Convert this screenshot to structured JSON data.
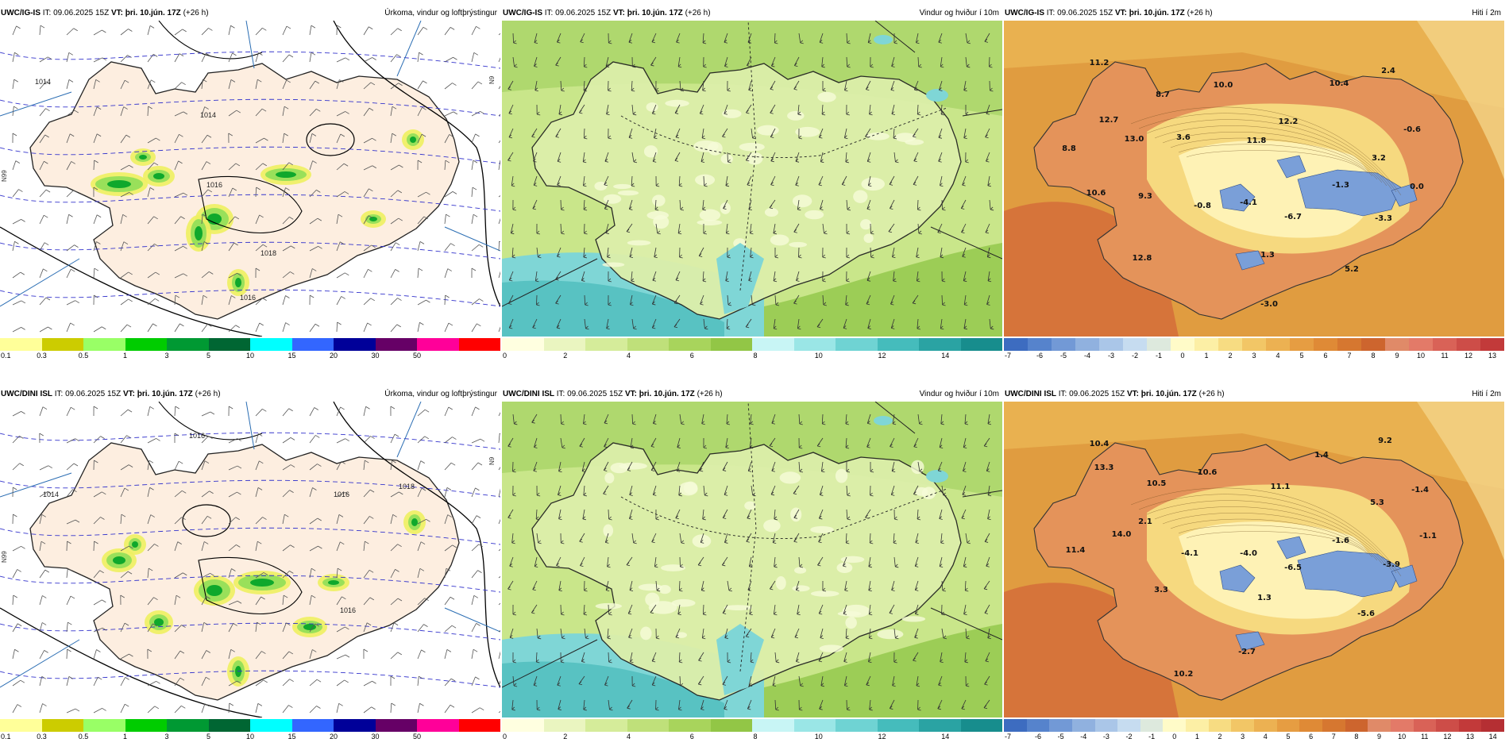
{
  "init_time": "IT: 09.06.2025 15Z",
  "valid_time": "VT: þri. 10.jún. 17Z",
  "lead": "(+26 h)",
  "panels": [
    {
      "model": "UWC/IG-IS",
      "title": "Úrkoma, vindur og loftþrýstingur",
      "kind": "precip",
      "row": 0,
      "col": 0
    },
    {
      "model": "UWC/IG-IS",
      "title": "Vindur og hviður í 10m",
      "kind": "wind",
      "row": 0,
      "col": 1
    },
    {
      "model": "UWC/IG-IS",
      "title": "Hiti í 2m",
      "kind": "temp",
      "row": 0,
      "col": 2
    },
    {
      "model": "UWC/DINI ISL",
      "title": "Úrkoma, vindur og loftþrýstingur",
      "kind": "precip",
      "row": 1,
      "col": 0
    },
    {
      "model": "UWC/DINI ISL",
      "title": "Vindur og hviður í 10m",
      "kind": "wind",
      "row": 1,
      "col": 1
    },
    {
      "model": "UWC/DINI ISL",
      "title": "Hiti í 2m",
      "kind": "temp",
      "row": 1,
      "col": 2
    }
  ],
  "colorbars": {
    "precip": {
      "colors": [
        "#ffff99",
        "#cccc00",
        "#99ff66",
        "#00cc00",
        "#009933",
        "#006633",
        "#00ffff",
        "#3366ff",
        "#000099",
        "#660066",
        "#ff0099",
        "#ff0000"
      ],
      "labels": [
        "0.1",
        "0.3",
        "0.5",
        "1",
        "3",
        "5",
        "10",
        "15",
        "20",
        "30",
        "50"
      ]
    },
    "wind": {
      "colors": [
        "#ffffe0",
        "#eaf5c0",
        "#d5ec9a",
        "#bfe07a",
        "#a8d45c",
        "#92c646",
        "#c8f5f5",
        "#9ae6e6",
        "#6fd3d3",
        "#45bcbc",
        "#2aa3a3",
        "#178d8d"
      ],
      "labels": [
        "0",
        "2",
        "4",
        "6",
        "8",
        "10",
        "12",
        "14"
      ]
    },
    "temp_top": {
      "colors": [
        "#3d6cc0",
        "#5683cc",
        "#7299d6",
        "#90b1df",
        "#aac6e8",
        "#c6dcf0",
        "#dde9dd",
        "#fffbc8",
        "#fcefa5",
        "#f7dc82",
        "#f2c666",
        "#ecb152",
        "#e69d42",
        "#df8a36",
        "#d67730",
        "#cd652e",
        "#e08a68",
        "#e37a68",
        "#d96257",
        "#cd4d48",
        "#c23a3a"
      ],
      "labels": [
        "-7",
        "-6",
        "-5",
        "-4",
        "-3",
        "-2",
        "-1",
        "0",
        "1",
        "2",
        "3",
        "4",
        "5",
        "6",
        "7",
        "8",
        "9",
        "10",
        "11",
        "12",
        "13"
      ]
    },
    "temp_bottom": {
      "colors": [
        "#3d6cc0",
        "#5683cc",
        "#7299d6",
        "#90b1df",
        "#aac6e8",
        "#c6dcf0",
        "#dde9dd",
        "#fffbc8",
        "#fcefa5",
        "#f7dc82",
        "#f2c666",
        "#ecb152",
        "#e69d42",
        "#df8a36",
        "#d67730",
        "#cd652e",
        "#e08a68",
        "#e37a68",
        "#d96257",
        "#cd4d48",
        "#c23a3a",
        "#b52f33"
      ],
      "labels": [
        "-7",
        "-6",
        "-5",
        "-4",
        "-3",
        "-2",
        "-1",
        "0",
        "1",
        "2",
        "3",
        "4",
        "5",
        "6",
        "7",
        "8",
        "9",
        "10",
        "11",
        "12",
        "13",
        "14"
      ]
    }
  },
  "temp_labels_top": [
    "11.2",
    "8.7",
    "10.0",
    "10.4",
    "2.4",
    "12.7",
    "-0.6",
    "8.8",
    "13.0",
    "3.6",
    "11.8",
    "12.2",
    "3.2",
    "-1.3",
    "0.0",
    "10.6",
    "9.3",
    "-0.8",
    "-4.1",
    "-6.7",
    "-3.3",
    "12.8",
    "1.3",
    "5.2",
    "-3.0"
  ],
  "temp_labels_bottom": [
    "10.4",
    "9.2",
    "1.4",
    "13.3",
    "10.6",
    "10.5",
    "11.1",
    "5.3",
    "-1.4",
    "2.1",
    "14.0",
    "-1.6",
    "-1.1",
    "11.4",
    "-4.1",
    "-4.0",
    "-6.5",
    "-3.9",
    "3.3",
    "1.3",
    "-5.6",
    "-2.7",
    "10.2"
  ],
  "pressure_labels_top": [
    "1014",
    "1014",
    "1016",
    "1018",
    "1016"
  ],
  "pressure_labels_bottom": [
    "1016",
    "1014",
    "1016",
    "1016",
    "1018"
  ],
  "side_labels": [
    "N99",
    "N9",
    "N9"
  ]
}
